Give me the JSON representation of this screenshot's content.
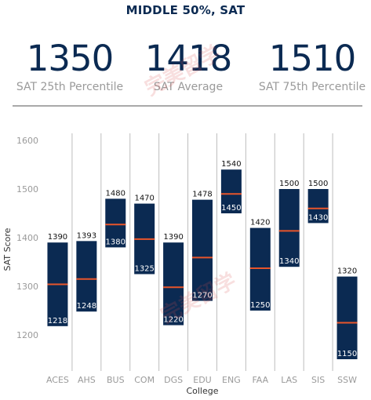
{
  "header": {
    "title": "MIDDLE 50%, SAT"
  },
  "stats": [
    {
      "value": "1350",
      "label": "SAT 25th Percentile"
    },
    {
      "value": "1418",
      "label": "SAT Average"
    },
    {
      "value": "1510",
      "label": "SAT 75th Percentile"
    }
  ],
  "watermark": "完美留学",
  "colors": {
    "bar": "#0b2a52",
    "median": "#e8552b",
    "text_dark": "#0b2a52",
    "text_muted": "#9a9a9a",
    "grid": "#bdbdbd"
  },
  "chart_data": {
    "type": "bar",
    "xlabel": "College",
    "ylabel": "SAT Score",
    "ylim": [
      1150,
      1650
    ],
    "yticks": [
      1200,
      1300,
      1400,
      1500,
      1600
    ],
    "categories": [
      "ACES",
      "AHS",
      "BUS",
      "COM",
      "DGS",
      "EDU",
      "ENG",
      "FAA",
      "LAS",
      "SIS",
      "SSW"
    ],
    "series": [
      {
        "low": [
          1218,
          1248,
          1380,
          1325,
          1220,
          1270,
          1450,
          1250,
          1340,
          1430,
          1150
        ],
        "high": [
          1390,
          1393,
          1480,
          1470,
          1390,
          1478,
          1540,
          1420,
          1500,
          1500,
          1320
        ],
        "mid": [
          1304,
          1315,
          1427,
          1397,
          1298,
          1359,
          1490,
          1337,
          1414,
          1460,
          1225
        ]
      }
    ],
    "grid": "vertical separators between categories",
    "legend": "none"
  }
}
